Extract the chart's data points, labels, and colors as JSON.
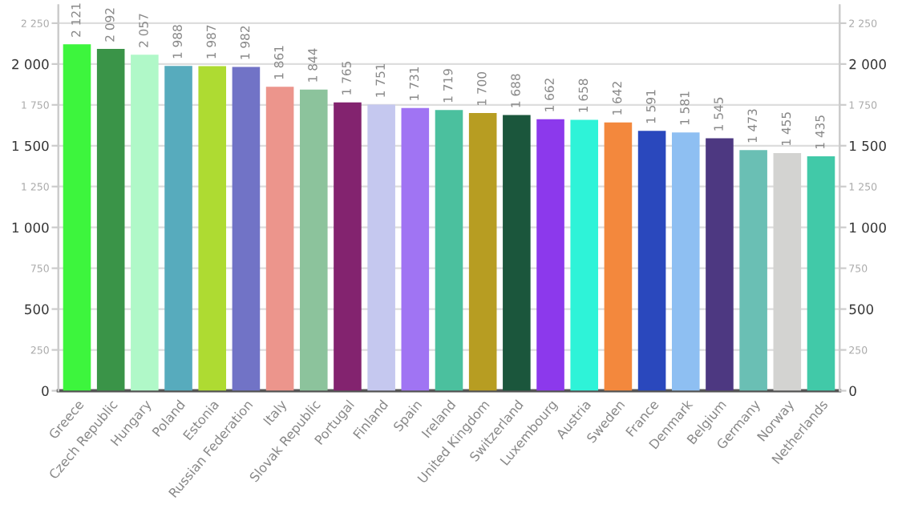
{
  "chart_data": {
    "type": "bar",
    "categories": [
      "Greece",
      "Czech Republic",
      "Hungary",
      "Poland",
      "Estonia",
      "Russian Federation",
      "Italy",
      "Slovak Republic",
      "Portugal",
      "Finland",
      "Spain",
      "Ireland",
      "United Kingdom",
      "Switzerland",
      "Luxembourg",
      "Austria",
      "Sweden",
      "France",
      "Denmark",
      "Belgium",
      "Germany",
      "Norway",
      "Netherlands"
    ],
    "values": [
      2121,
      2092,
      2057,
      1988,
      1987,
      1982,
      1861,
      1844,
      1765,
      1751,
      1731,
      1719,
      1700,
      1688,
      1662,
      1658,
      1642,
      1591,
      1581,
      1545,
      1473,
      1455,
      1435
    ],
    "value_labels": [
      "2 121",
      "2 092",
      "2 057",
      "1 988",
      "1 987",
      "1 982",
      "1 861",
      "1 844",
      "1 765",
      "1 751",
      "1 731",
      "1 719",
      "1 700",
      "1 688",
      "1 662",
      "1 658",
      "1 642",
      "1 591",
      "1 581",
      "1 545",
      "1 473",
      "1 455",
      "1 435"
    ],
    "colors": [
      "#3df53d",
      "#3a9448",
      "#b0f8c8",
      "#57abbd",
      "#aedb32",
      "#7173c6",
      "#ec958c",
      "#8cc39c",
      "#83236f",
      "#c5c8ef",
      "#a074f3",
      "#4bc09e",
      "#b79d22",
      "#1b563c",
      "#8c39ec",
      "#2ef3d8",
      "#f3883d",
      "#2a48bd",
      "#8ebff2",
      "#4d3881",
      "#6abfb4",
      "#d3d3d1",
      "#41c9a8"
    ],
    "ylim": [
      0,
      2360
    ],
    "yticks": [
      0,
      {
        "value": 250,
        "label": "250"
      },
      500,
      {
        "value": 750,
        "label": "750"
      },
      {
        "value": 1000,
        "label": "1 000"
      },
      {
        "value": 1250,
        "label": "1 250"
      },
      {
        "value": 1500,
        "label": "1 500"
      },
      {
        "value": 1750,
        "label": "1 750"
      },
      {
        "value": 2000,
        "label": "2 000"
      },
      {
        "value": 2250,
        "label": "2 250"
      }
    ],
    "y2lim": [
      0,
      2360
    ],
    "y2ticks": [
      0,
      {
        "value": 250,
        "label": "250"
      },
      500,
      {
        "value": 750,
        "label": "750"
      },
      {
        "value": 1000,
        "label": "1 000"
      },
      {
        "value": 1250,
        "label": "1 250"
      },
      {
        "value": 1500,
        "label": "1 500"
      },
      {
        "value": 1750,
        "label": "1 750"
      },
      {
        "value": 2000,
        "label": "2 000"
      },
      {
        "value": 2250,
        "label": "2 250"
      }
    ],
    "grid": "y"
  }
}
